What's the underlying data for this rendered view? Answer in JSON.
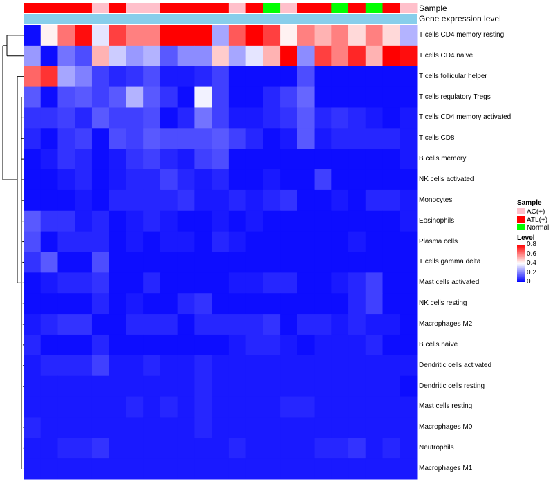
{
  "chart_data": {
    "type": "heatmap",
    "title": "",
    "annotation_labels": [
      "Sample",
      "Gene expression level"
    ],
    "columns_sample": [
      "ATL(+)",
      "ATL(+)",
      "ATL(+)",
      "ATL(+)",
      "AC(+)",
      "ATL(+)",
      "AC(+)",
      "AC(+)",
      "ATL(+)",
      "ATL(+)",
      "ATL(+)",
      "ATL(+)",
      "AC(+)",
      "ATL(+)",
      "Normal",
      "AC(+)",
      "ATL(+)",
      "ATL(+)",
      "Normal",
      "ATL(+)",
      "Normal",
      "ATL(+)",
      "AC(+)"
    ],
    "rows": [
      "T cells CD4 memory resting",
      "T cells CD4 naive",
      "T cells follicular helper",
      "T cells regulatory  Tregs",
      "T cells CD4 memory activated",
      "T cells CD8",
      "B cells memory",
      "NK cells activated",
      "Monocytes",
      "Eosinophils",
      "Plasma cells",
      "T cells gamma delta",
      "Mast cells activated",
      "NK cells resting",
      "Macrophages M2",
      "B cells naive",
      "Dendritic cells activated",
      "Dendritic cells resting",
      "Mast cells resting",
      "Macrophages M0",
      "Neutrophils",
      "Macrophages M1"
    ],
    "values": [
      [
        0.02,
        0.42,
        0.62,
        0.78,
        0.36,
        0.7,
        0.6,
        0.6,
        0.8,
        0.8,
        0.8,
        0.26,
        0.66,
        0.8,
        0.7,
        0.42,
        0.6,
        0.52,
        0.6,
        0.46,
        0.6,
        0.46,
        0.28
      ],
      [
        0.24,
        0.02,
        0.18,
        0.12,
        0.52,
        0.32,
        0.24,
        0.28,
        0.14,
        0.22,
        0.22,
        0.48,
        0.26,
        0.36,
        0.52,
        0.8,
        0.22,
        0.7,
        0.6,
        0.74,
        0.52,
        0.8,
        0.78
      ],
      [
        0.64,
        0.72,
        0.26,
        0.2,
        0.1,
        0.06,
        0.08,
        0.12,
        0.04,
        0.04,
        0.06,
        0.1,
        0.02,
        0.02,
        0.02,
        0.02,
        0.12,
        0.02,
        0.02,
        0.02,
        0.02,
        0.02,
        0.02
      ],
      [
        0.14,
        0.02,
        0.12,
        0.14,
        0.1,
        0.14,
        0.28,
        0.14,
        0.08,
        0.02,
        0.38,
        0.1,
        0.02,
        0.02,
        0.06,
        0.1,
        0.16,
        0.02,
        0.02,
        0.02,
        0.02,
        0.02,
        0.02
      ],
      [
        0.08,
        0.08,
        0.1,
        0.06,
        0.14,
        0.1,
        0.1,
        0.12,
        0.02,
        0.06,
        0.18,
        0.1,
        0.04,
        0.04,
        0.06,
        0.08,
        0.14,
        0.06,
        0.08,
        0.06,
        0.04,
        0.02,
        0.04
      ],
      [
        0.06,
        0.02,
        0.08,
        0.1,
        0.02,
        0.12,
        0.1,
        0.14,
        0.12,
        0.12,
        0.12,
        0.14,
        0.1,
        0.06,
        0.02,
        0.04,
        0.14,
        0.04,
        0.06,
        0.06,
        0.06,
        0.06,
        0.04
      ],
      [
        0.02,
        0.04,
        0.08,
        0.06,
        0.02,
        0.04,
        0.08,
        0.1,
        0.06,
        0.04,
        0.1,
        0.12,
        0.02,
        0.02,
        0.02,
        0.02,
        0.02,
        0.02,
        0.02,
        0.02,
        0.02,
        0.02,
        0.04
      ],
      [
        0.02,
        0.02,
        0.04,
        0.06,
        0.02,
        0.04,
        0.06,
        0.06,
        0.1,
        0.06,
        0.04,
        0.06,
        0.02,
        0.02,
        0.04,
        0.02,
        0.02,
        0.1,
        0.02,
        0.02,
        0.02,
        0.02,
        0.02
      ],
      [
        0.02,
        0.02,
        0.02,
        0.04,
        0.02,
        0.06,
        0.06,
        0.06,
        0.06,
        0.08,
        0.04,
        0.04,
        0.06,
        0.04,
        0.06,
        0.08,
        0.02,
        0.02,
        0.04,
        0.02,
        0.06,
        0.06,
        0.04
      ],
      [
        0.14,
        0.08,
        0.08,
        0.04,
        0.06,
        0.02,
        0.04,
        0.06,
        0.04,
        0.02,
        0.02,
        0.04,
        0.02,
        0.04,
        0.02,
        0.02,
        0.02,
        0.02,
        0.02,
        0.02,
        0.02,
        0.02,
        0.04
      ],
      [
        0.12,
        0.02,
        0.06,
        0.06,
        0.06,
        0.02,
        0.04,
        0.02,
        0.04,
        0.04,
        0.02,
        0.06,
        0.04,
        0.02,
        0.02,
        0.02,
        0.02,
        0.02,
        0.02,
        0.04,
        0.02,
        0.02,
        0.02
      ],
      [
        0.08,
        0.14,
        0.02,
        0.02,
        0.12,
        0.02,
        0.02,
        0.02,
        0.02,
        0.02,
        0.02,
        0.02,
        0.02,
        0.02,
        0.02,
        0.02,
        0.02,
        0.02,
        0.02,
        0.02,
        0.02,
        0.02,
        0.02
      ],
      [
        0.02,
        0.04,
        0.06,
        0.06,
        0.08,
        0.02,
        0.02,
        0.06,
        0.02,
        0.02,
        0.02,
        0.02,
        0.04,
        0.04,
        0.06,
        0.06,
        0.02,
        0.02,
        0.04,
        0.06,
        0.1,
        0.02,
        0.02
      ],
      [
        0.02,
        0.02,
        0.02,
        0.02,
        0.06,
        0.02,
        0.04,
        0.02,
        0.02,
        0.06,
        0.08,
        0.02,
        0.02,
        0.02,
        0.02,
        0.02,
        0.02,
        0.02,
        0.02,
        0.06,
        0.1,
        0.02,
        0.02
      ],
      [
        0.04,
        0.06,
        0.08,
        0.08,
        0.02,
        0.02,
        0.06,
        0.06,
        0.06,
        0.02,
        0.06,
        0.06,
        0.06,
        0.06,
        0.08,
        0.02,
        0.06,
        0.06,
        0.04,
        0.06,
        0.04,
        0.04,
        0.02
      ],
      [
        0.06,
        0.02,
        0.02,
        0.02,
        0.06,
        0.02,
        0.02,
        0.02,
        0.02,
        0.02,
        0.02,
        0.02,
        0.04,
        0.06,
        0.06,
        0.04,
        0.02,
        0.04,
        0.04,
        0.04,
        0.06,
        0.02,
        0.02
      ],
      [
        0.04,
        0.06,
        0.06,
        0.06,
        0.1,
        0.04,
        0.04,
        0.06,
        0.04,
        0.04,
        0.06,
        0.04,
        0.04,
        0.04,
        0.04,
        0.04,
        0.04,
        0.04,
        0.04,
        0.04,
        0.04,
        0.04,
        0.04
      ],
      [
        0.04,
        0.04,
        0.04,
        0.04,
        0.04,
        0.04,
        0.04,
        0.04,
        0.04,
        0.04,
        0.06,
        0.04,
        0.04,
        0.04,
        0.04,
        0.04,
        0.04,
        0.04,
        0.04,
        0.04,
        0.04,
        0.04,
        0.02
      ],
      [
        0.04,
        0.04,
        0.04,
        0.04,
        0.04,
        0.04,
        0.06,
        0.04,
        0.06,
        0.04,
        0.06,
        0.04,
        0.04,
        0.04,
        0.04,
        0.06,
        0.06,
        0.04,
        0.04,
        0.04,
        0.04,
        0.04,
        0.04
      ],
      [
        0.06,
        0.04,
        0.04,
        0.04,
        0.04,
        0.04,
        0.04,
        0.04,
        0.04,
        0.04,
        0.06,
        0.04,
        0.04,
        0.04,
        0.04,
        0.04,
        0.04,
        0.04,
        0.04,
        0.04,
        0.04,
        0.04,
        0.04
      ],
      [
        0.04,
        0.04,
        0.06,
        0.06,
        0.08,
        0.04,
        0.04,
        0.04,
        0.04,
        0.04,
        0.04,
        0.04,
        0.06,
        0.04,
        0.04,
        0.04,
        0.04,
        0.06,
        0.06,
        0.08,
        0.04,
        0.06,
        0.04
      ],
      [
        0.04,
        0.04,
        0.04,
        0.04,
        0.04,
        0.04,
        0.04,
        0.04,
        0.04,
        0.04,
        0.04,
        0.04,
        0.04,
        0.04,
        0.04,
        0.04,
        0.04,
        0.04,
        0.04,
        0.04,
        0.04,
        0.04,
        0.04
      ]
    ],
    "color_scale": {
      "min": 0,
      "max": 0.8,
      "low": "#0000FF",
      "mid": "#FFFFFF",
      "high": "#FF0000",
      "mid_value": 0.4
    },
    "legend": {
      "sample_title": "Sample",
      "sample_items": [
        {
          "label": "AC(+)",
          "color": "#FFC0CB"
        },
        {
          "label": "ATL(+)",
          "color": "#FF0000"
        },
        {
          "label": "Normal",
          "color": "#00FF00"
        }
      ],
      "level_title": "Level",
      "level_ticks": [
        "0.8",
        "0.6",
        "0.4",
        "0.2",
        "0"
      ],
      "level_tick_values": [
        0.8,
        0.6,
        0.4,
        0.2,
        0
      ]
    },
    "gene_expression_color": "#87CEEB"
  }
}
